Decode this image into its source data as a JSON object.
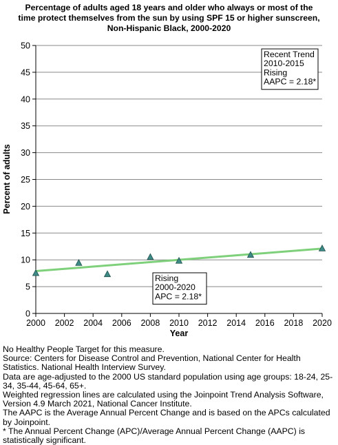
{
  "title_lines": [
    "Percentage of adults aged 18 years and older who always or most of the",
    "time protect themselves from the sun by using SPF 15 or higher sunscreen,",
    "Non-Hispanic Black,  2000-2020"
  ],
  "chart_data": {
    "type": "scatter",
    "xlabel": "Year",
    "ylabel": "Percent of adults",
    "xlim": [
      2000,
      2020
    ],
    "ylim": [
      0,
      50
    ],
    "x_ticks": [
      2000,
      2002,
      2004,
      2006,
      2008,
      2010,
      2012,
      2014,
      2016,
      2018,
      2020
    ],
    "y_ticks": [
      0,
      5,
      10,
      15,
      20,
      25,
      30,
      35,
      40,
      45,
      50
    ],
    "grid": "horizontal",
    "points": [
      {
        "x": 2000,
        "y": 7.5
      },
      {
        "x": 2003,
        "y": 9.4
      },
      {
        "x": 2005,
        "y": 7.3
      },
      {
        "x": 2008,
        "y": 10.5
      },
      {
        "x": 2010,
        "y": 9.8
      },
      {
        "x": 2015,
        "y": 10.9
      },
      {
        "x": 2020,
        "y": 12.1
      }
    ],
    "trend_line": [
      {
        "x": 2000,
        "y": 7.9
      },
      {
        "x": 2020,
        "y": 12.1
      }
    ],
    "colors": {
      "point_fill": "#3d8a87",
      "trend_line": "#7ed07a",
      "grid": "#888888"
    },
    "annotations": [
      {
        "id": "recent-trend",
        "lines": [
          "Recent Trend",
          "2010-2015",
          "Rising",
          "AAPC =  2.18*"
        ]
      },
      {
        "id": "overall-trend",
        "lines": [
          "Rising",
          "2000-2020",
          "APC =  2.18*"
        ]
      }
    ]
  },
  "footer_lines": [
    "No Healthy People Target for this measure.",
    "Source: Centers for Disease Control and Prevention, National Center for Health Statistics. National Health Interview Survey.",
    "Data are age-adjusted to the 2000 US standard population using age groups: 18-24, 25-34, 35-44, 45-64, 65+.",
    "Weighted regression lines are calculated using the Joinpoint Trend Analysis Software, Version 4.9 March 2021, National Cancer Institute.",
    "The AAPC is the Average Annual Percent Change and is based on the APCs calculated by Joinpoint.",
    "* The Annual Percent Change (APC)/Average Annual Percent Change (AAPC) is statistically significant."
  ]
}
